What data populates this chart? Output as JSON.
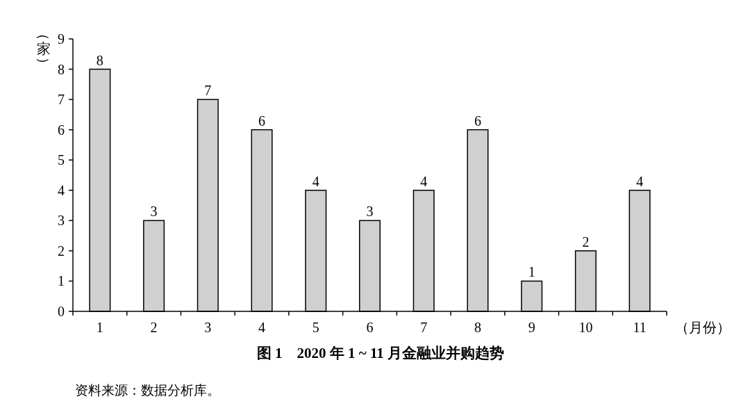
{
  "chart_data": {
    "type": "bar",
    "title": "图 1　2020 年 1 ~ 11 月金融业并购趋势",
    "xlabel": "（月份）",
    "ylabel": "（家）",
    "categories": [
      "1",
      "2",
      "3",
      "4",
      "5",
      "6",
      "7",
      "8",
      "9",
      "10",
      "11"
    ],
    "values": [
      8,
      3,
      7,
      6,
      4,
      3,
      4,
      6,
      1,
      2,
      4
    ],
    "color": "#d0d0d0",
    "ylim": [
      0,
      9
    ],
    "yticks": [
      0,
      1,
      2,
      3,
      4,
      5,
      6,
      7,
      8,
      9
    ],
    "grid": false,
    "data_labels": true,
    "annotations": [
      "资料来源：数据分析库。"
    ]
  }
}
